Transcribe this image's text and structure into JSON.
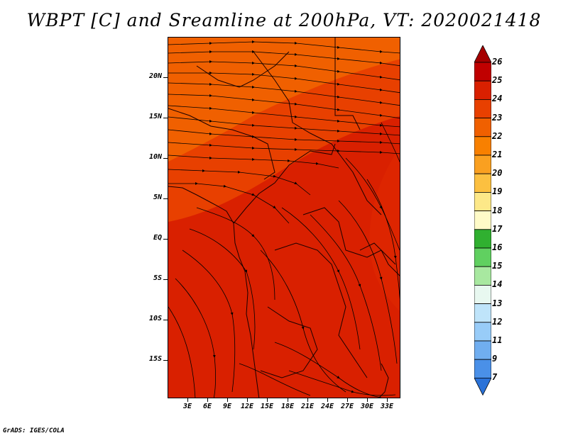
{
  "title": "WBPT [C] and Sreamline at 200hPa, VT: 2020021418",
  "footer": "GrADS: IGES/COLA",
  "lat_labels": [
    "20N",
    "15N",
    "10N",
    "5N",
    "EQ",
    "5S",
    "10S",
    "15S"
  ],
  "lon_labels": [
    "3E",
    "6E",
    "9E",
    "12E",
    "15E",
    "18E",
    "21E",
    "24E",
    "27E",
    "30E",
    "33E"
  ],
  "colorbar": {
    "labels": [
      "26",
      "25",
      "24",
      "23",
      "22",
      "21",
      "20",
      "19",
      "18",
      "17",
      "16",
      "15",
      "14",
      "13",
      "12",
      "11",
      "9",
      "7"
    ],
    "colors": [
      "#a50000",
      "#c00000",
      "#d92000",
      "#e84000",
      "#f06000",
      "#f88000",
      "#faa020",
      "#fcc040",
      "#fde888",
      "#fffbc8",
      "#30b030",
      "#60d060",
      "#a8e8a0",
      "#e8f8f0",
      "#bfe4fa",
      "#98ccf8",
      "#70aef0",
      "#4a90e8",
      "#2a72d8"
    ]
  },
  "map": {
    "field_colors": {
      "north": "#f06000",
      "band": "#e84000",
      "south": "#d92000"
    }
  }
}
